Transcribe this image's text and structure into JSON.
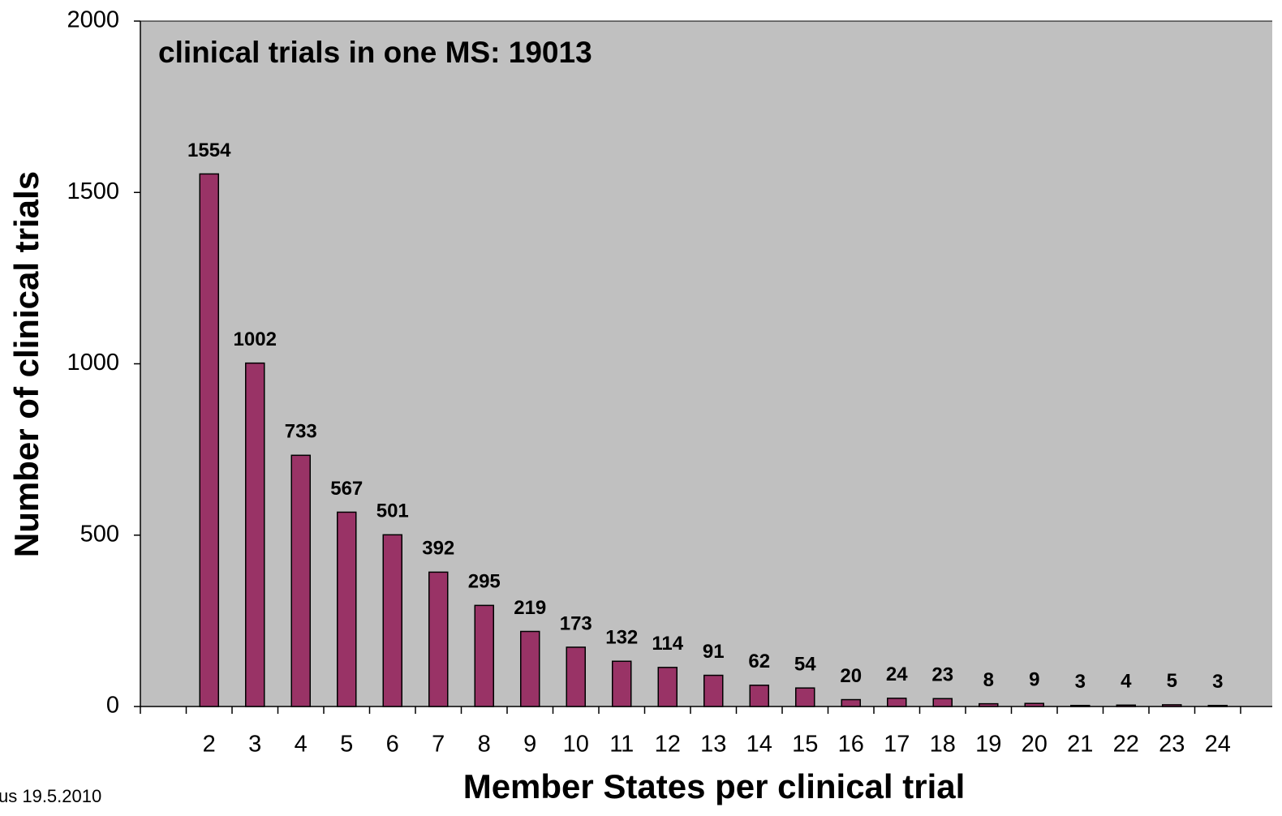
{
  "chart_data": {
    "type": "bar",
    "annotation": "clinical trials in one MS:  19013",
    "x_label": "Member States per clinical trial",
    "y_label": "Number of clinical trials",
    "footnote": "us 19.5.2010",
    "categories": [
      null,
      "2",
      "3",
      "4",
      "5",
      "6",
      "7",
      "8",
      "9",
      "10",
      "11",
      "12",
      "13",
      "14",
      "15",
      "16",
      "17",
      "18",
      "19",
      "20",
      "21",
      "22",
      "23",
      "24",
      null
    ],
    "values": [
      null,
      1554,
      1002,
      733,
      567,
      501,
      392,
      295,
      219,
      173,
      132,
      114,
      91,
      62,
      54,
      20,
      24,
      23,
      8,
      9,
      3,
      4,
      5,
      3,
      null
    ],
    "color": "#993366",
    "ylim": [
      0,
      2000
    ],
    "yticks": [
      0,
      500,
      1000,
      1500,
      2000
    ],
    "grid": false
  }
}
